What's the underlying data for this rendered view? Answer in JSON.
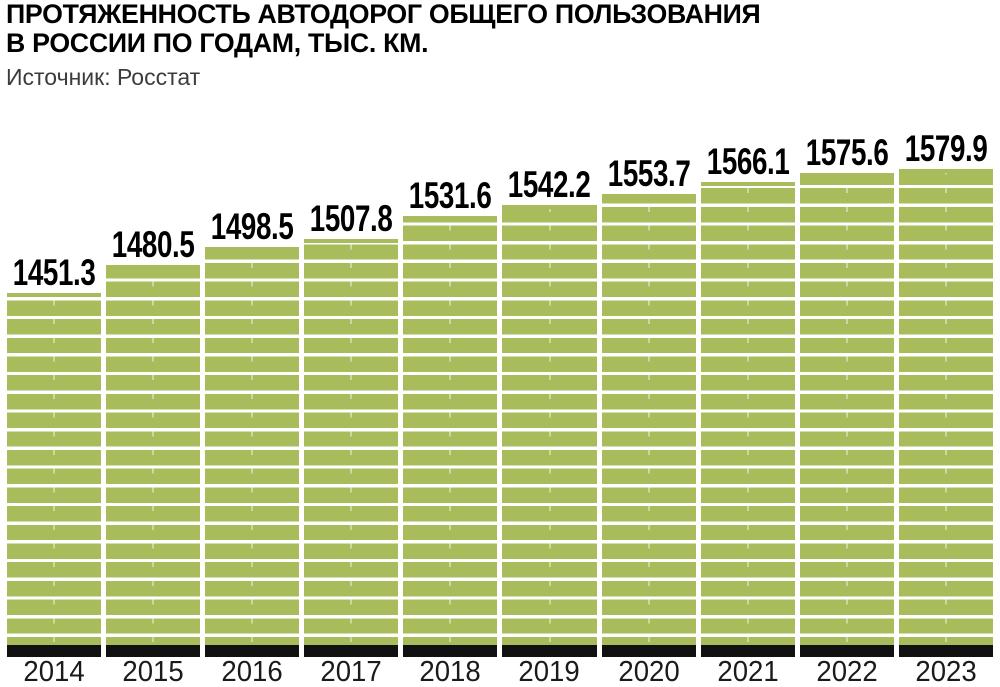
{
  "header": {
    "title": "ПРОТЯЖЕННОСТЬ АВТОДОРОГ ОБЩЕГО ПОЛЬЗОВАНИЯ\nВ РОССИИ ПО ГОДАМ, ТЫС. КМ.",
    "source": "Источник: Росстат"
  },
  "chart_data": {
    "type": "bar",
    "title": "ПРОТЯЖЕННОСТЬ АВТОДОРОГ ОБЩЕГО ПОЛЬЗОВАНИЯ В РОССИИ ПО ГОДАМ, ТЫС. КМ.",
    "subtitle": "Источник: Росстат",
    "categories": [
      "2014",
      "2015",
      "2016",
      "2017",
      "2018",
      "2019",
      "2020",
      "2021",
      "2022",
      "2023"
    ],
    "values": [
      1451.3,
      1480.5,
      1498.5,
      1507.8,
      1531.6,
      1542.2,
      1553.7,
      1566.1,
      1575.6,
      1579.9
    ],
    "value_labels": [
      "1451.3",
      "1480.5",
      "1498.5",
      "1507.8",
      "1531.6",
      "1542.2",
      "1553.7",
      "1566.1",
      "1575.6",
      "1579.9"
    ],
    "xlabel": "",
    "ylabel": "тыс. км",
    "ylim": [
      1420,
      1600
    ],
    "axis_truncated": true,
    "grid": "off",
    "legend": "none",
    "data_labels_shown": true,
    "colors": {
      "bar_fill": "#a8bc5c",
      "stripe": "#ffffff",
      "base": "#111111",
      "value_label": "#000000",
      "year_label": "#1a1a1a",
      "title": "#000000",
      "source": "#3c3c3c"
    }
  }
}
